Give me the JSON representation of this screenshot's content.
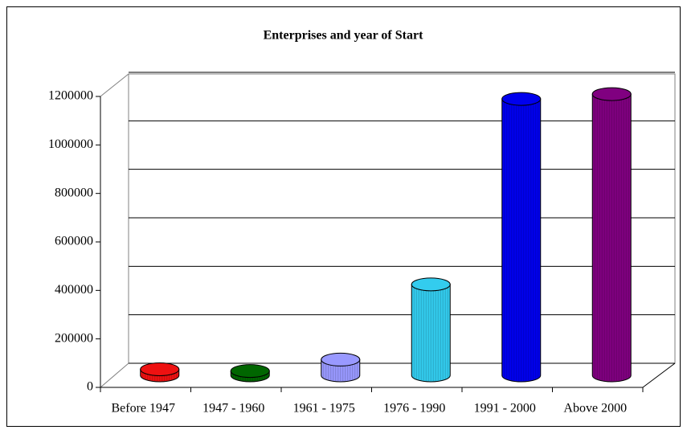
{
  "chart_data": {
    "type": "bar",
    "title": "Enterprises and year of Start",
    "categories": [
      "Before 1947",
      "1947 - 1960",
      "1961 - 1975",
      "1976 - 1990",
      "1991 - 2000",
      "Above 2000"
    ],
    "values": [
      25000,
      18000,
      65000,
      375000,
      1140000,
      1160000
    ],
    "colors": [
      "#ee1111",
      "#006600",
      "#9999ff",
      "#33ccee",
      "#0000ee",
      "#800080"
    ],
    "ylim": [
      0,
      1200000
    ],
    "yticks": [
      0,
      200000,
      400000,
      600000,
      800000,
      1000000,
      1200000
    ],
    "grid": true
  }
}
